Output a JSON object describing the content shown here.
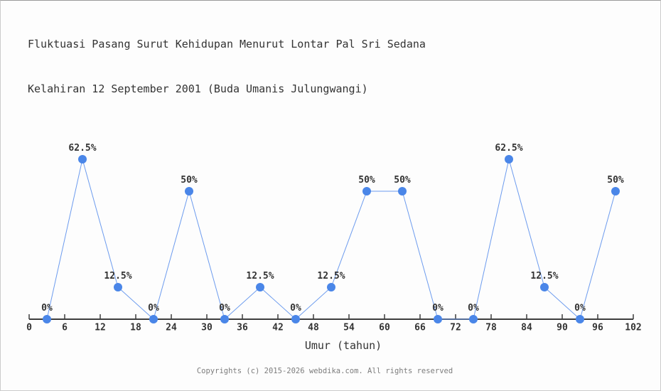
{
  "window": {
    "background_color": "#fdfdfd",
    "border_color": "#cccccc"
  },
  "header": {
    "title_line1": "Fluktuasi Pasang Surut Kehidupan Menurut Lontar Pal Sri Sedana",
    "title_line2": "Kelahiran 12 September 2001 (Buda Umanis Julungwangi)"
  },
  "chart_data": {
    "type": "line",
    "title": "Fluktuasi Pasang Surut Kehidupan Menurut Lontar Pal Sri Sedana Kelahiran 12 September 2001 (Buda Umanis Julungwangi)",
    "xlabel": "Umur (tahun)",
    "ylabel": "",
    "x": [
      3,
      9,
      15,
      21,
      27,
      33,
      39,
      45,
      51,
      57,
      63,
      69,
      75,
      81,
      87,
      93,
      99
    ],
    "values": [
      0,
      62.5,
      12.5,
      0,
      50,
      0,
      12.5,
      0,
      12.5,
      50,
      50,
      0,
      0,
      62.5,
      12.5,
      0,
      50
    ],
    "point_labels": [
      "0%",
      "62.5%",
      "12.5%",
      "0%",
      "50%",
      "0%",
      "12.5%",
      "0%",
      "12.5%",
      "50%",
      "50%",
      "0%",
      "0%",
      "62.5%",
      "12.5%",
      "0%",
      "50%"
    ],
    "x_ticks": [
      0,
      6,
      12,
      18,
      24,
      30,
      36,
      42,
      48,
      54,
      60,
      66,
      72,
      78,
      84,
      90,
      96,
      102
    ],
    "xlim": [
      0,
      102
    ],
    "ylim": [
      0,
      100
    ],
    "grid": false,
    "legend_position": "none",
    "line_color": "#6c9bee",
    "marker_color": "#4a86e8",
    "axis_color": "#3d3d3d",
    "label_color": "#333333"
  },
  "footer": {
    "copyright": "Copyrights (c) 2015-2026 webdika.com. All rights reserved"
  }
}
